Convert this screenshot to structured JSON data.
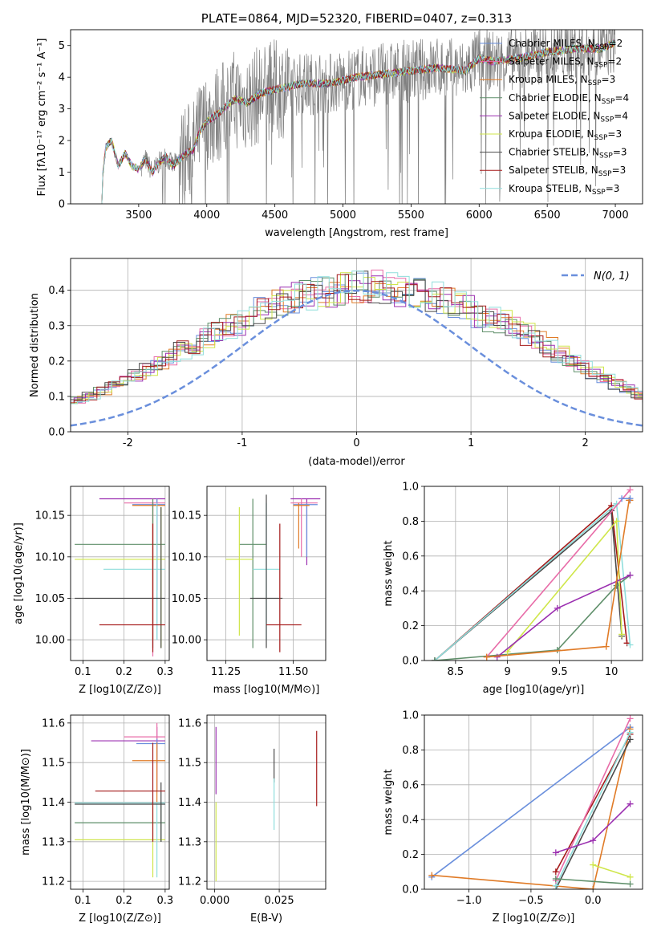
{
  "colors": {
    "blue": "#6a8fdc",
    "orange": "#e07b27",
    "green": "#5f8f6a",
    "purple": "#9b2fb0",
    "yellow": "#cfe64a",
    "dark": "#4a4a4a",
    "red": "#a51a1a",
    "cyan": "#8fdedc",
    "pink": "#e86ca8",
    "gray": "#7f7f7f"
  },
  "chart_data": [
    {
      "id": "spectrum",
      "type": "line",
      "title": "PLATE=0864, MJD=52320, FIBERID=0407, z=0.313",
      "xlabel": "wavelength [Angstrom, rest frame]",
      "ylabel": "Flux [fλ10⁻¹⁷ erg cm⁻² s⁻¹ A⁻¹]",
      "xlim": [
        3000,
        7200
      ],
      "ylim": [
        0,
        5.5
      ],
      "xticks": [
        3500,
        4000,
        4500,
        5000,
        5500,
        6000,
        6500,
        7000
      ],
      "yticks": [
        0,
        1,
        2,
        3,
        4,
        5
      ],
      "grid": false,
      "legend_position": "top-right",
      "legend": [
        {
          "label": "Chabrier MILES, N",
          "sub": "SSP",
          "suffix": "=2",
          "color": "#6a8fdc"
        },
        {
          "label": "Salpeter MILES, N",
          "sub": "SSP",
          "suffix": "=2",
          "color": "#e86ca8"
        },
        {
          "label": "Kroupa MILES, N",
          "sub": "SSP",
          "suffix": "=3",
          "color": "#e07b27"
        },
        {
          "label": "Chabrier ELODIE, N",
          "sub": "SSP",
          "suffix": "=4",
          "color": "#5f8f6a"
        },
        {
          "label": "Salpeter ELODIE, N",
          "sub": "SSP",
          "suffix": "=4",
          "color": "#9b2fb0"
        },
        {
          "label": "Kroupa ELODIE, N",
          "sub": "SSP",
          "suffix": "=3",
          "color": "#cfe64a"
        },
        {
          "label": "Chabrier STELIB, N",
          "sub": "SSP",
          "suffix": "=3",
          "color": "#4a4a4a"
        },
        {
          "label": "Salpeter STELIB, N",
          "sub": "SSP",
          "suffix": "=3",
          "color": "#a51a1a"
        },
        {
          "label": "Kroupa STELIB, N",
          "sub": "SSP",
          "suffix": "=3",
          "color": "#8fdedc"
        }
      ],
      "model_curve": {
        "x": [
          3230,
          3260,
          3300,
          3350,
          3400,
          3450,
          3500,
          3550,
          3600,
          3650,
          3700,
          3750,
          3800,
          3850,
          3900,
          3950,
          4000,
          4100,
          4200,
          4300,
          4400,
          4500,
          4700,
          4900,
          5100,
          5300,
          5500,
          5700,
          5900,
          6000,
          6100,
          6300,
          6500,
          6700,
          6900,
          7000
        ],
        "y": [
          0.7,
          1.8,
          2.0,
          1.2,
          1.6,
          1.2,
          1.1,
          1.4,
          1.0,
          1.3,
          1.5,
          1.2,
          1.4,
          1.6,
          1.7,
          2.3,
          2.6,
          2.9,
          3.3,
          3.2,
          3.5,
          3.6,
          3.8,
          3.8,
          4.0,
          4.1,
          4.2,
          4.3,
          4.2,
          4.6,
          4.5,
          4.6,
          4.8,
          4.9,
          4.9,
          5.1
        ]
      },
      "data_curve": {
        "x_start": 3520,
        "x_end": 7000,
        "noise_start": 3800
      }
    },
    {
      "id": "residuals",
      "type": "line",
      "xlabel": "(data-model)/error",
      "ylabel": "Normed distribution",
      "xlim": [
        -2.5,
        2.5
      ],
      "ylim": [
        0,
        0.49
      ],
      "xticks": [
        -2,
        -1,
        0,
        1,
        2
      ],
      "yticks": [
        0.0,
        0.1,
        0.2,
        0.3,
        0.4
      ],
      "grid": true,
      "legend_position": "top-right",
      "legend_label": "N(0, 1)",
      "bin_width": 0.1,
      "hist_shape": [
        0.018,
        0.025,
        0.03,
        0.035,
        0.04,
        0.05,
        0.055,
        0.065,
        0.075,
        0.08,
        0.09,
        0.1,
        0.115,
        0.13,
        0.145,
        0.16,
        0.175,
        0.19,
        0.21,
        0.23,
        0.245,
        0.265,
        0.28,
        0.3,
        0.31,
        0.33,
        0.345,
        0.36,
        0.37,
        0.38,
        0.385,
        0.395,
        0.4,
        0.405,
        0.41,
        0.415,
        0.41,
        0.405,
        0.4,
        0.395,
        0.39,
        0.38,
        0.37,
        0.36,
        0.345,
        0.33,
        0.32,
        0.31,
        0.295,
        0.275,
        0.26,
        0.24,
        0.22,
        0.2,
        0.18,
        0.165,
        0.15,
        0.135,
        0.12,
        0.105,
        0.095,
        0.085,
        0.075,
        0.065,
        0.06,
        0.05,
        0.045,
        0.04,
        0.035,
        0.03
      ]
    },
    {
      "id": "age-vs-z",
      "type": "scatter",
      "xlabel": "Z [log10(Z/Z⊙)]",
      "ylabel": "age  [log10(age/yr)]",
      "xlim": [
        0.07,
        0.31
      ],
      "ylim": [
        9.975,
        10.185
      ],
      "xticks": [
        0.1,
        0.2,
        0.3
      ],
      "yticks": [
        10.0,
        10.05,
        10.1,
        10.15
      ],
      "grid": true,
      "points": [
        {
          "x": 0.28,
          "y": 10.17,
          "xerr": [
            0.14,
            0.3
          ],
          "yerr": [
            10.06,
            10.17
          ],
          "color": "#9b2fb0"
        },
        {
          "x": 0.27,
          "y": 10.165,
          "xerr": [
            0.2,
            0.3
          ],
          "yerr": [
            9.98,
            10.17
          ],
          "color": "#e86ca8"
        },
        {
          "x": 0.28,
          "y": 10.163,
          "xerr": [
            0.22,
            0.3
          ],
          "yerr": [
            10.0,
            10.17
          ],
          "color": "#6a8fdc"
        },
        {
          "x": 0.27,
          "y": 10.162,
          "xerr": [
            0.22,
            0.3
          ],
          "yerr": [
            10.0,
            10.165
          ],
          "color": "#e07b27"
        },
        {
          "x": 0.27,
          "y": 10.115,
          "xerr": [
            0.08,
            0.3
          ],
          "yerr": [
            9.99,
            10.17
          ],
          "color": "#5f8f6a"
        },
        {
          "x": 0.29,
          "y": 10.097,
          "xerr": [
            0.08,
            0.3
          ],
          "yerr": [
            9.99,
            10.16
          ],
          "color": "#cfe64a"
        },
        {
          "x": 0.28,
          "y": 10.085,
          "xerr": [
            0.15,
            0.3
          ],
          "yerr": [
            10.0,
            10.165
          ],
          "color": "#8fdedc"
        },
        {
          "x": 0.29,
          "y": 10.05,
          "xerr": [
            0.08,
            0.3
          ],
          "yerr": [
            9.99,
            10.16
          ],
          "color": "#4a4a4a"
        },
        {
          "x": 0.27,
          "y": 10.018,
          "xerr": [
            0.14,
            0.3
          ],
          "yerr": [
            9.985,
            10.14
          ],
          "color": "#a51a1a"
        }
      ]
    },
    {
      "id": "age-vs-mass",
      "type": "scatter",
      "xlabel": "mass [log10(M/M⊙)]",
      "ylabel": "",
      "xlim": [
        11.18,
        11.62
      ],
      "ylim": [
        9.975,
        10.185
      ],
      "xticks": [
        11.25,
        11.5
      ],
      "xticklabels": [
        "11.25",
        "11.50"
      ],
      "yticks": [
        10.0,
        10.05,
        10.1,
        10.15
      ],
      "grid": true,
      "points": [
        {
          "x": 11.55,
          "y": 10.17,
          "xerr": [
            11.49,
            11.6
          ],
          "yerr": [
            10.09,
            10.17
          ],
          "color": "#9b2fb0"
        },
        {
          "x": 11.53,
          "y": 10.165,
          "xerr": [
            11.49,
            11.59
          ],
          "yerr": [
            10.1,
            10.17
          ],
          "color": "#e86ca8"
        },
        {
          "x": 11.55,
          "y": 10.163,
          "xerr": [
            11.5,
            11.59
          ],
          "yerr": [
            10.1,
            10.165
          ],
          "color": "#6a8fdc"
        },
        {
          "x": 11.52,
          "y": 10.162,
          "xerr": [
            11.5,
            11.56
          ],
          "yerr": [
            10.11,
            10.165
          ],
          "color": "#e07b27"
        },
        {
          "x": 11.35,
          "y": 10.115,
          "xerr": [
            11.3,
            11.4
          ],
          "yerr": [
            9.99,
            10.17
          ],
          "color": "#5f8f6a"
        },
        {
          "x": 11.3,
          "y": 10.097,
          "xerr": [
            11.25,
            11.35
          ],
          "yerr": [
            10.005,
            10.16
          ],
          "color": "#cfe64a"
        },
        {
          "x": 11.4,
          "y": 10.085,
          "xerr": [
            11.35,
            11.45
          ],
          "yerr": [
            10.0,
            10.165
          ],
          "color": "#8fdedc"
        },
        {
          "x": 11.4,
          "y": 10.05,
          "xerr": [
            11.34,
            11.46
          ],
          "yerr": [
            9.99,
            10.175
          ],
          "color": "#4a4a4a"
        },
        {
          "x": 11.45,
          "y": 10.018,
          "xerr": [
            11.4,
            11.53
          ],
          "yerr": [
            9.985,
            10.14
          ],
          "color": "#a51a1a"
        }
      ]
    },
    {
      "id": "weight-vs-age",
      "type": "line",
      "xlabel": "age  [log10(age/yr)]",
      "ylabel": "mass weight",
      "xlim": [
        8.2,
        10.3
      ],
      "ylim": [
        0.0,
        1.0
      ],
      "xticks": [
        8.5,
        9.0,
        9.5,
        10.0
      ],
      "yticks": [
        0.0,
        0.2,
        0.4,
        0.6,
        0.8,
        1.0
      ],
      "grid": true,
      "series": [
        {
          "color": "#a51a1a",
          "x": [
            8.3,
            10.0,
            10.15
          ],
          "y": [
            0.0,
            0.89,
            0.1
          ]
        },
        {
          "color": "#4a4a4a",
          "x": [
            8.3,
            10.0,
            10.1
          ],
          "y": [
            0.0,
            0.86,
            0.14
          ]
        },
        {
          "color": "#8fdedc",
          "x": [
            8.3,
            10.05,
            10.18
          ],
          "y": [
            0.0,
            0.9,
            0.09
          ]
        },
        {
          "color": "#5f8f6a",
          "x": [
            8.3,
            9.48,
            10.05,
            10.18
          ],
          "y": [
            0.0,
            0.06,
            0.43,
            0.49
          ]
        },
        {
          "color": "#e86ca8",
          "x": [
            8.8,
            10.18
          ],
          "y": [
            0.02,
            0.98
          ]
        },
        {
          "color": "#cfe64a",
          "x": [
            9.0,
            10.05,
            10.1
          ],
          "y": [
            0.05,
            0.8,
            0.15
          ]
        },
        {
          "color": "#9b2fb0",
          "x": [
            8.9,
            9.48,
            10.18
          ],
          "y": [
            0.02,
            0.3,
            0.49
          ]
        },
        {
          "color": "#e07b27",
          "x": [
            8.8,
            9.95,
            10.17,
            10.18
          ],
          "y": [
            0.02,
            0.08,
            0.92,
            0.92
          ]
        },
        {
          "color": "#6a8fdc",
          "x": [
            10.1,
            10.18
          ],
          "y": [
            0.93,
            0.93
          ]
        }
      ]
    },
    {
      "id": "mass-vs-z",
      "type": "scatter",
      "xlabel": "Z [log10(Z/Z⊙)]",
      "ylabel": "mass [log10(M/M⊙)]",
      "xlim": [
        0.07,
        0.31
      ],
      "ylim": [
        11.18,
        11.62
      ],
      "xticks": [
        0.1,
        0.2,
        0.3
      ],
      "yticks": [
        11.2,
        11.3,
        11.4,
        11.5,
        11.6
      ],
      "grid": true,
      "points": [
        {
          "x": 0.28,
          "y": 11.555,
          "xerr": [
            0.12,
            0.3
          ],
          "yerr": [
            11.43,
            11.59
          ],
          "color": "#9b2fb0"
        },
        {
          "x": 0.28,
          "y": 11.565,
          "xerr": [
            0.2,
            0.3
          ],
          "yerr": [
            11.5,
            11.6
          ],
          "color": "#e86ca8"
        },
        {
          "x": 0.28,
          "y": 11.548,
          "xerr": [
            0.23,
            0.3
          ],
          "yerr": [
            11.5,
            11.56
          ],
          "color": "#6a8fdc"
        },
        {
          "x": 0.28,
          "y": 11.505,
          "xerr": [
            0.22,
            0.3
          ],
          "yerr": [
            11.4,
            11.55
          ],
          "color": "#e07b27"
        },
        {
          "x": 0.29,
          "y": 11.348,
          "xerr": [
            0.08,
            0.3
          ],
          "yerr": [
            11.3,
            11.4
          ],
          "color": "#5f8f6a"
        },
        {
          "x": 0.27,
          "y": 11.305,
          "xerr": [
            0.08,
            0.3
          ],
          "yerr": [
            11.21,
            11.4
          ],
          "color": "#cfe64a"
        },
        {
          "x": 0.28,
          "y": 11.398,
          "xerr": [
            0.08,
            0.3
          ],
          "yerr": [
            11.21,
            11.4
          ],
          "color": "#8fdedc"
        },
        {
          "x": 0.29,
          "y": 11.395,
          "xerr": [
            0.08,
            0.3
          ],
          "yerr": [
            11.3,
            11.45
          ],
          "color": "#4a4a4a"
        },
        {
          "x": 0.27,
          "y": 11.428,
          "xerr": [
            0.13,
            0.3
          ],
          "yerr": [
            11.3,
            11.55
          ],
          "color": "#a51a1a"
        }
      ]
    },
    {
      "id": "mass-vs-ebv",
      "type": "scatter",
      "xlabel": "E(B-V)",
      "ylabel": "",
      "xlim": [
        -0.003,
        0.043
      ],
      "ylim": [
        11.18,
        11.62
      ],
      "xticks": [
        0.0,
        0.025
      ],
      "xticklabels": [
        "0.000",
        "0.025"
      ],
      "yticks": [
        11.2,
        11.3,
        11.4,
        11.5,
        11.6
      ],
      "grid": true,
      "points": [
        {
          "x": 0.0005,
          "y": 11.56,
          "xerr": [
            0.0005,
            0.0005
          ],
          "yerr": [
            11.42,
            11.59
          ],
          "color": "#9b2fb0"
        },
        {
          "x": 0.0005,
          "y": 11.3,
          "xerr": [
            0.0005,
            0.0005
          ],
          "yerr": [
            11.2,
            11.4
          ],
          "color": "#cfe64a"
        },
        {
          "x": 0.023,
          "y": 11.5,
          "xerr": [
            0.023,
            0.023
          ],
          "yerr": [
            11.45,
            11.535
          ],
          "color": "#4a4a4a"
        },
        {
          "x": 0.023,
          "y": 11.38,
          "xerr": [
            0.023,
            0.023
          ],
          "yerr": [
            11.33,
            11.46
          ],
          "color": "#8fdedc"
        },
        {
          "x": 0.0395,
          "y": 11.49,
          "xerr": [
            0.0395,
            0.0395
          ],
          "yerr": [
            11.39,
            11.58
          ],
          "color": "#a51a1a"
        }
      ]
    },
    {
      "id": "weight-vs-z",
      "type": "line",
      "xlabel": "Z [log10(Z/Z⊙)]",
      "ylabel": "mass weight",
      "xlim": [
        -1.36,
        0.4
      ],
      "ylim": [
        0.0,
        1.0
      ],
      "xticks": [
        -1.0,
        -0.5,
        0.0
      ],
      "xticklabels": [
        "−1.0",
        "−0.5",
        "0.0"
      ],
      "yticks": [
        0.0,
        0.2,
        0.4,
        0.6,
        0.8,
        1.0
      ],
      "grid": true,
      "series": [
        {
          "color": "#6a8fdc",
          "x": [
            -1.3,
            0.3
          ],
          "y": [
            0.07,
            0.93
          ]
        },
        {
          "color": "#e07b27",
          "x": [
            -1.3,
            0.0,
            0.3
          ],
          "y": [
            0.08,
            0.0,
            0.92
          ]
        },
        {
          "color": "#a51a1a",
          "x": [
            -0.3,
            0.3
          ],
          "y": [
            0.1,
            0.89
          ]
        },
        {
          "color": "#4a4a4a",
          "x": [
            -0.3,
            0.3
          ],
          "y": [
            0.0,
            0.86
          ]
        },
        {
          "color": "#8fdedc",
          "x": [
            -0.3,
            0.3
          ],
          "y": [
            0.02,
            0.9
          ]
        },
        {
          "color": "#e86ca8",
          "x": [
            -0.3,
            0.3
          ],
          "y": [
            0.05,
            0.98
          ]
        },
        {
          "color": "#9b2fb0",
          "x": [
            -0.3,
            0.0,
            0.3
          ],
          "y": [
            0.21,
            0.28,
            0.49
          ]
        },
        {
          "color": "#5f8f6a",
          "x": [
            -0.3,
            0.3
          ],
          "y": [
            0.06,
            0.03
          ]
        },
        {
          "color": "#cfe64a",
          "x": [
            0.0,
            0.3
          ],
          "y": [
            0.14,
            0.07
          ]
        }
      ]
    }
  ]
}
